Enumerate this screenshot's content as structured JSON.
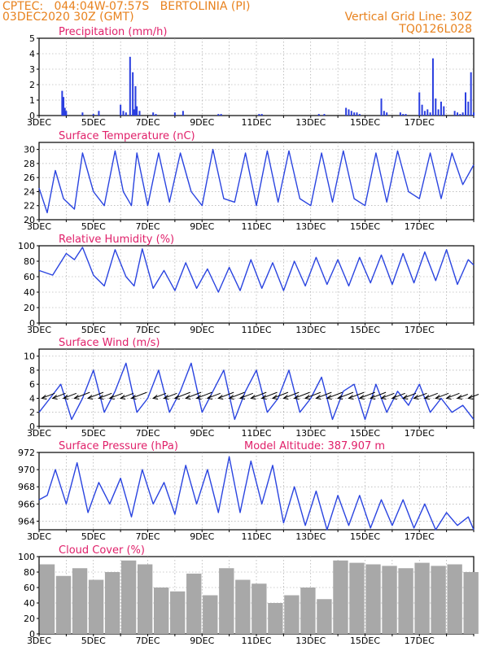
{
  "header": {
    "line1": "CPTEC:   044:04W-07:57S   BERTOLINIA (PI)",
    "line2": "03DEC2020 30Z (GMT)",
    "right1": "Vertical Grid Line: 30Z",
    "right2": "TQ0126L028"
  },
  "colors": {
    "header": "#e8821e",
    "title": "#e0206a",
    "line": "#2a44e0",
    "bar_precip": "#2a3ee0",
    "bar_cloud": "#a8a8a8",
    "arrow": "#000000"
  },
  "x_ticks": [
    "3DEC",
    "5DEC",
    "7DEC",
    "9DEC",
    "11DEC",
    "13DEC",
    "15DEC",
    "17DEC"
  ],
  "chart_data": [
    {
      "type": "bar",
      "id": "precip",
      "title": "Precipitation  (mm/h)",
      "ylim": [
        0,
        5
      ],
      "yticks": [
        "0",
        "1",
        "2",
        "3",
        "4",
        "5"
      ],
      "x": [
        0.85,
        0.9,
        0.95,
        1.0,
        1.6,
        2.0,
        2.2,
        3.0,
        3.1,
        3.2,
        3.35,
        3.45,
        3.5,
        3.55,
        3.6,
        3.7,
        4.2,
        4.3,
        5.0,
        5.3,
        6.6,
        6.7,
        8.1,
        8.2,
        10.3,
        10.5,
        11.3,
        11.4,
        11.5,
        11.6,
        11.7,
        11.8,
        12.6,
        12.7,
        12.8,
        13.3,
        13.4,
        13.5,
        14.0,
        14.1,
        14.2,
        14.3,
        14.4,
        14.5,
        14.6,
        14.7,
        14.8,
        14.9,
        15.3,
        15.4,
        15.5,
        15.6,
        15.7,
        15.8,
        15.9,
        16.0
      ],
      "values": [
        1.6,
        1.2,
        0.5,
        0.3,
        0.2,
        0.1,
        0.3,
        0.7,
        0.3,
        0.2,
        3.8,
        2.8,
        0.4,
        1.9,
        0.6,
        0.3,
        0.2,
        0.1,
        0.2,
        0.3,
        0.1,
        0.1,
        0.1,
        0.1,
        0.1,
        0.1,
        0.5,
        0.4,
        0.3,
        0.2,
        0.2,
        0.1,
        1.1,
        0.3,
        0.2,
        0.2,
        0.1,
        0.1,
        1.5,
        0.7,
        0.3,
        0.4,
        0.2,
        3.7,
        1.1,
        0.4,
        0.9,
        0.6,
        0.3,
        0.2,
        0.1,
        0.2,
        1.5,
        0.9,
        2.8,
        0.2
      ]
    },
    {
      "type": "line",
      "id": "temp",
      "title": "Surface Temperature (nC)",
      "ylim": [
        20,
        31
      ],
      "yticks": [
        "20",
        "22",
        "24",
        "26",
        "28",
        "30"
      ],
      "series": [
        {
          "x": [
            0,
            0.3,
            0.6,
            0.9,
            1.3,
            1.6,
            2.0,
            2.4,
            2.8,
            3.1,
            3.4,
            3.6,
            4.0,
            4.4,
            4.8,
            5.2,
            5.6,
            6.0,
            6.4,
            6.8,
            7.2,
            7.6,
            8.0,
            8.4,
            8.8,
            9.2,
            9.6,
            10.0,
            10.4,
            10.8,
            11.2,
            11.6,
            12.0,
            12.4,
            12.8,
            13.2,
            13.6,
            14.0,
            14.4,
            14.8,
            15.2,
            15.6,
            16.0
          ],
          "values": [
            24.5,
            21,
            27,
            23,
            21.5,
            29.5,
            24,
            22,
            29.8,
            24,
            22,
            29.5,
            22,
            29.5,
            22.5,
            29.5,
            24,
            22,
            30,
            23,
            22.5,
            29.5,
            22,
            29.8,
            22.5,
            29.8,
            23,
            22,
            29.5,
            22.5,
            29.8,
            23,
            22,
            29.5,
            22.5,
            29.8,
            24,
            23,
            29.5,
            23,
            29.5,
            25,
            27.8
          ]
        }
      ]
    },
    {
      "type": "line",
      "id": "rh",
      "title": "Relative Humidity (%)",
      "ylim": [
        0,
        100
      ],
      "yticks": [
        "0",
        "20",
        "40",
        "60",
        "80",
        "100"
      ],
      "series": [
        {
          "x": [
            0,
            0.5,
            1.0,
            1.3,
            1.6,
            2.0,
            2.4,
            2.8,
            3.2,
            3.5,
            3.8,
            4.2,
            4.6,
            5.0,
            5.4,
            5.8,
            6.2,
            6.6,
            7.0,
            7.4,
            7.8,
            8.2,
            8.6,
            9.0,
            9.4,
            9.8,
            10.2,
            10.6,
            11.0,
            11.4,
            11.8,
            12.2,
            12.6,
            13.0,
            13.4,
            13.8,
            14.2,
            14.6,
            15.0,
            15.4,
            15.8,
            16.0
          ],
          "values": [
            68,
            62,
            90,
            82,
            98,
            62,
            48,
            95,
            60,
            48,
            96,
            45,
            68,
            42,
            78,
            45,
            70,
            40,
            72,
            42,
            82,
            45,
            78,
            42,
            80,
            48,
            85,
            50,
            82,
            48,
            85,
            52,
            88,
            50,
            90,
            52,
            92,
            55,
            95,
            50,
            82,
            75
          ]
        }
      ]
    },
    {
      "type": "line",
      "id": "wind",
      "title": "Surface Wind (m/s)",
      "ylim": [
        0,
        11
      ],
      "yticks": [
        "0",
        "2",
        "4",
        "6",
        "8",
        "10"
      ],
      "series": [
        {
          "x": [
            0,
            0.4,
            0.8,
            1.2,
            1.6,
            2.0,
            2.4,
            2.8,
            3.2,
            3.6,
            4.0,
            4.4,
            4.8,
            5.2,
            5.6,
            6.0,
            6.4,
            6.8,
            7.2,
            7.6,
            8.0,
            8.4,
            8.8,
            9.2,
            9.6,
            10.0,
            10.4,
            10.8,
            11.2,
            11.6,
            12.0,
            12.4,
            12.8,
            13.2,
            13.6,
            14.0,
            14.4,
            14.8,
            15.2,
            15.6,
            16.0
          ],
          "values": [
            2,
            4,
            6,
            1,
            4,
            8,
            2,
            5,
            9,
            2,
            4,
            8,
            2,
            5,
            9,
            2,
            5,
            8,
            1,
            5,
            8,
            2,
            4,
            8,
            2,
            4,
            7,
            1,
            5,
            6,
            1,
            6,
            2,
            5,
            3,
            6,
            2,
            4,
            2,
            3,
            1
          ]
        }
      ],
      "arrows": {
        "x": [
          0.1,
          0.5,
          0.9,
          1.3,
          1.8,
          2.2,
          2.6,
          3.0,
          3.4,
          4.2,
          4.6,
          5.0,
          5.4,
          5.8,
          6.2,
          6.6,
          7.0,
          7.4,
          7.8,
          8.2,
          8.6,
          9.0,
          9.4,
          9.8,
          10.2,
          10.6,
          11.0,
          11.4,
          11.8,
          12.2,
          12.6,
          13.0,
          13.4,
          13.8,
          14.2,
          14.6,
          15.0,
          15.4,
          15.8
        ],
        "dir_deg": [
          60,
          70,
          70,
          70,
          65,
          70,
          60,
          70,
          60,
          60,
          65,
          60,
          60,
          60,
          60,
          60,
          60,
          60,
          55,
          50,
          50,
          50,
          45,
          40,
          45,
          40,
          40,
          35,
          30,
          35,
          30,
          30,
          30,
          20,
          25,
          20,
          20,
          15,
          10
        ],
        "speed": [
          4,
          4,
          4,
          5,
          5,
          4,
          4,
          4,
          5,
          4,
          4,
          5,
          5,
          5,
          4,
          5,
          5,
          4,
          5,
          5,
          5,
          5,
          5,
          5,
          5,
          5,
          5,
          5,
          5,
          5,
          4,
          4,
          4,
          4,
          4,
          4,
          4,
          3,
          3
        ]
      }
    },
    {
      "type": "line",
      "id": "pres",
      "title": "Surface Pressure (hPa)",
      "subtitle": "Model Altitude: 387.907  m",
      "ylim": [
        963,
        972
      ],
      "yticks": [
        "964",
        "966",
        "968",
        "970",
        "972"
      ],
      "series": [
        {
          "x": [
            0,
            0.3,
            0.6,
            1.0,
            1.4,
            1.8,
            2.2,
            2.6,
            3.0,
            3.4,
            3.8,
            4.2,
            4.6,
            5.0,
            5.4,
            5.8,
            6.2,
            6.6,
            7.0,
            7.4,
            7.8,
            8.2,
            8.6,
            9.0,
            9.4,
            9.8,
            10.2,
            10.6,
            11.0,
            11.4,
            11.8,
            12.2,
            12.6,
            13.0,
            13.4,
            13.8,
            14.2,
            14.6,
            15.0,
            15.4,
            15.8,
            16.0
          ],
          "values": [
            966.5,
            967,
            970,
            966,
            970.8,
            965,
            968.5,
            966,
            969,
            964.5,
            970,
            966,
            968.5,
            964.8,
            970.5,
            966,
            970,
            965,
            971.5,
            965,
            971,
            966,
            970.5,
            963.8,
            968,
            963.5,
            967.5,
            963,
            967,
            963.5,
            967,
            963.2,
            966.5,
            963.5,
            966.5,
            963.2,
            966,
            963,
            965,
            963.5,
            964.5,
            963
          ]
        }
      ]
    },
    {
      "type": "bar",
      "id": "cloud",
      "title": "Cloud Cover (%)",
      "ylim": [
        0,
        100
      ],
      "yticks": [
        "0",
        "20",
        "40",
        "60",
        "80",
        "100"
      ],
      "x": [
        0.3,
        0.9,
        1.5,
        2.1,
        2.7,
        3.3,
        3.9,
        4.5,
        5.1,
        5.7,
        6.3,
        6.9,
        7.5,
        8.1,
        8.7,
        9.3,
        9.9,
        10.5,
        11.1,
        11.7,
        12.3,
        12.9,
        13.5,
        14.1,
        14.7,
        15.3,
        15.9
      ],
      "values": [
        90,
        75,
        85,
        70,
        80,
        95,
        90,
        60,
        55,
        78,
        50,
        85,
        70,
        65,
        40,
        50,
        60,
        45,
        95,
        92,
        90,
        88,
        85,
        92,
        88,
        90,
        80
      ]
    }
  ]
}
